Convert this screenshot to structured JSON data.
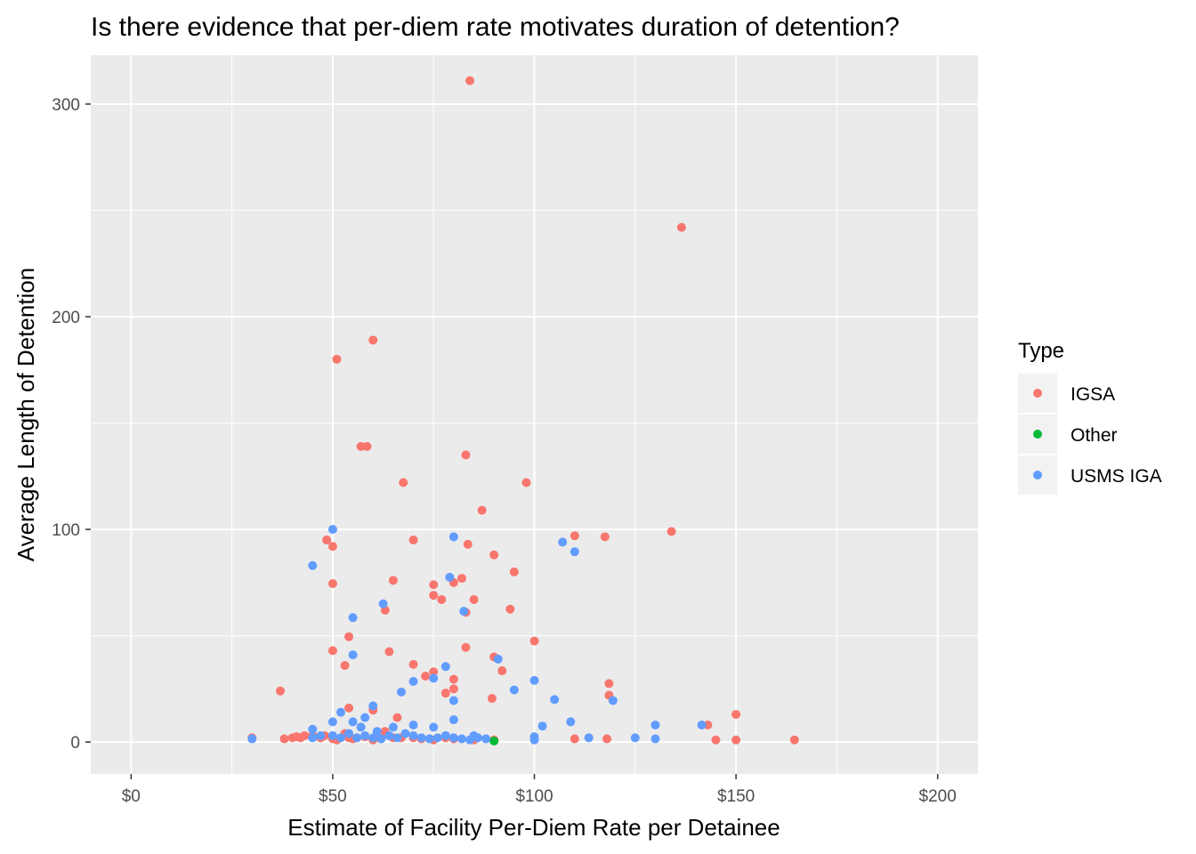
{
  "chart_data": {
    "type": "scatter",
    "title": "Is there evidence that per-diem rate motivates duration of detention?",
    "xlabel": "Estimate of Facility Per-Diem Rate per Detainee",
    "ylabel": "Average Length of Detention",
    "xlim": [
      -10,
      210
    ],
    "ylim": [
      -15,
      323
    ],
    "x_ticks": [
      0,
      50,
      100,
      150,
      200
    ],
    "x_tick_labels": [
      "$0",
      "$50",
      "$100",
      "$150",
      "$200"
    ],
    "y_ticks": [
      0,
      100,
      200,
      300
    ],
    "y_tick_labels": [
      "0",
      "100",
      "200",
      "300"
    ],
    "grid": true,
    "legend": {
      "title": "Type",
      "position": "right"
    },
    "series": [
      {
        "name": "IGSA",
        "color": "#F8766D",
        "points": [
          [
            84,
            311
          ],
          [
            136.5,
            242
          ],
          [
            60,
            189
          ],
          [
            51,
            180
          ],
          [
            57,
            139
          ],
          [
            58.5,
            139
          ],
          [
            83,
            135
          ],
          [
            67.5,
            122
          ],
          [
            98,
            122
          ],
          [
            87,
            109
          ],
          [
            48.5,
            95
          ],
          [
            70,
            95
          ],
          [
            110,
            97
          ],
          [
            117.5,
            96.5
          ],
          [
            134,
            99
          ],
          [
            50,
            92
          ],
          [
            83.5,
            93
          ],
          [
            90,
            88
          ],
          [
            95,
            80
          ],
          [
            65,
            76
          ],
          [
            50,
            74.5
          ],
          [
            75,
            74
          ],
          [
            80,
            75
          ],
          [
            82,
            77
          ],
          [
            75,
            69
          ],
          [
            77,
            67
          ],
          [
            85,
            67
          ],
          [
            63,
            62
          ],
          [
            83,
            61
          ],
          [
            94,
            62.5
          ],
          [
            54,
            49.5
          ],
          [
            100,
            47.5
          ],
          [
            50,
            43
          ],
          [
            64,
            42.5
          ],
          [
            83,
            44.5
          ],
          [
            53,
            36
          ],
          [
            70,
            36.5
          ],
          [
            90,
            40
          ],
          [
            73,
            31
          ],
          [
            75,
            33
          ],
          [
            92,
            33.5
          ],
          [
            80,
            29.5
          ],
          [
            118.5,
            27.5
          ],
          [
            37,
            24
          ],
          [
            78,
            23
          ],
          [
            80,
            25
          ],
          [
            89.5,
            20.5
          ],
          [
            118.5,
            22
          ],
          [
            66,
            11.5
          ],
          [
            143,
            8
          ],
          [
            150,
            13
          ],
          [
            30,
            2
          ],
          [
            38,
            1.5
          ],
          [
            40,
            2
          ],
          [
            41,
            2.5
          ],
          [
            42,
            2
          ],
          [
            43,
            3
          ],
          [
            45,
            3
          ],
          [
            47,
            2
          ],
          [
            48,
            3
          ],
          [
            50,
            1.5
          ],
          [
            51,
            1
          ],
          [
            53,
            4
          ],
          [
            54,
            2
          ],
          [
            55,
            1.5
          ],
          [
            56,
            2
          ],
          [
            58,
            2.5
          ],
          [
            60,
            1
          ],
          [
            62,
            3
          ],
          [
            63,
            5
          ],
          [
            65,
            2
          ],
          [
            67,
            2
          ],
          [
            70,
            2
          ],
          [
            72,
            1.5
          ],
          [
            75,
            1
          ],
          [
            78,
            2
          ],
          [
            80,
            1.5
          ],
          [
            85,
            1
          ],
          [
            90,
            1
          ],
          [
            110,
            1.5
          ],
          [
            118,
            1.5
          ],
          [
            145,
            1
          ],
          [
            150,
            1
          ],
          [
            164.5,
            1
          ],
          [
            60,
            15
          ],
          [
            54,
            16
          ]
        ]
      },
      {
        "name": "Other",
        "color": "#00BA38",
        "points": [
          [
            90,
            0.5
          ]
        ]
      },
      {
        "name": "USMS IGA",
        "color": "#619CFF",
        "points": [
          [
            50,
            100
          ],
          [
            80,
            96.5
          ],
          [
            107,
            94
          ],
          [
            110,
            89.5
          ],
          [
            45,
            83
          ],
          [
            79,
            77.5
          ],
          [
            62.5,
            65
          ],
          [
            82.5,
            61.5
          ],
          [
            55,
            58.5
          ],
          [
            55,
            41
          ],
          [
            91,
            39
          ],
          [
            78,
            35.5
          ],
          [
            75,
            30
          ],
          [
            70,
            28.5
          ],
          [
            100,
            29
          ],
          [
            67,
            23.5
          ],
          [
            95,
            24.5
          ],
          [
            80,
            19.5
          ],
          [
            105,
            20
          ],
          [
            119.5,
            19.5
          ],
          [
            60,
            17
          ],
          [
            52,
            14
          ],
          [
            58,
            11.5
          ],
          [
            50,
            9.5
          ],
          [
            55,
            9.5
          ],
          [
            80,
            10.5
          ],
          [
            109,
            9.5
          ],
          [
            102,
            7.5
          ],
          [
            130,
            8
          ],
          [
            141.5,
            8
          ],
          [
            45,
            6
          ],
          [
            57,
            7
          ],
          [
            61,
            5
          ],
          [
            65,
            7
          ],
          [
            70,
            8
          ],
          [
            75,
            7
          ],
          [
            85,
            3
          ],
          [
            30,
            1.5
          ],
          [
            45,
            2
          ],
          [
            47,
            3
          ],
          [
            50,
            3
          ],
          [
            52,
            2
          ],
          [
            54,
            4
          ],
          [
            56,
            2
          ],
          [
            58,
            3
          ],
          [
            60,
            2
          ],
          [
            62,
            1.5
          ],
          [
            64,
            3
          ],
          [
            66,
            2
          ],
          [
            68,
            4
          ],
          [
            70,
            3
          ],
          [
            72,
            2
          ],
          [
            74,
            1.5
          ],
          [
            76,
            2
          ],
          [
            78,
            3
          ],
          [
            80,
            2
          ],
          [
            82,
            1.5
          ],
          [
            84,
            1
          ],
          [
            86,
            2
          ],
          [
            88,
            1.5
          ],
          [
            100,
            2.5
          ],
          [
            100,
            1
          ],
          [
            113.5,
            2
          ],
          [
            125,
            2
          ],
          [
            130,
            1.5
          ]
        ]
      }
    ]
  }
}
